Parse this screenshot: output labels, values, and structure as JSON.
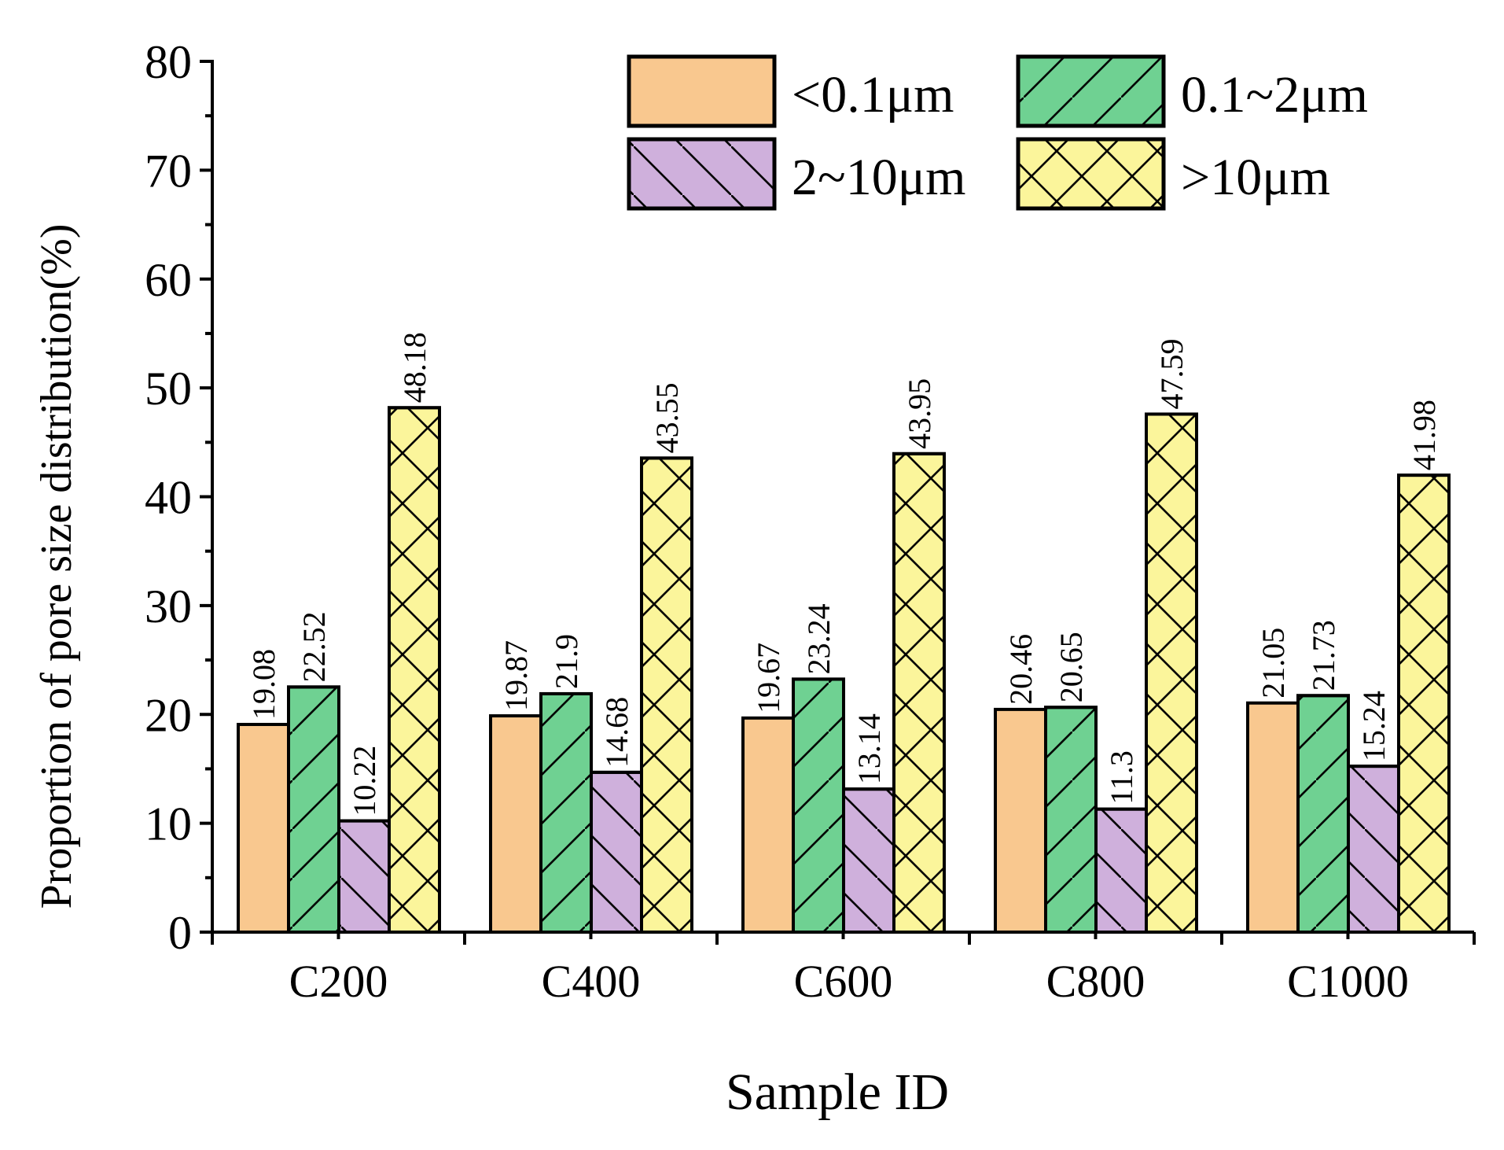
{
  "chart_data": {
    "type": "bar",
    "title": "",
    "xlabel": "Sample ID",
    "ylabel": "Proportion of pore size distribution(%)",
    "categories": [
      "C200",
      "C400",
      "C600",
      "C800",
      "C1000"
    ],
    "ylim": [
      0,
      80
    ],
    "y_ticks": [
      "0",
      "10",
      "20",
      "30",
      "40",
      "50",
      "60",
      "70",
      "80"
    ],
    "legend_position": "top-right",
    "grid": false,
    "series": [
      {
        "name": "<0.1μm",
        "color": "#f9c88f",
        "pattern": "none",
        "values": [
          19.08,
          19.87,
          19.67,
          20.46,
          21.05
        ],
        "labels": [
          "19.08",
          "19.87",
          "19.67",
          "20.46",
          "21.05"
        ]
      },
      {
        "name": "0.1~2μm",
        "color": "#6fd192",
        "pattern": "forward-diagonal",
        "values": [
          22.52,
          21.9,
          23.24,
          20.65,
          21.73
        ],
        "labels": [
          "22.52",
          "21.9",
          "23.24",
          "20.65",
          "21.73"
        ]
      },
      {
        "name": "2~10μm",
        "color": "#cfb0dc",
        "pattern": "back-diagonal",
        "values": [
          10.22,
          14.68,
          13.14,
          11.3,
          15.24
        ],
        "labels": [
          "10.22",
          "14.68",
          "13.14",
          "11.3",
          "15.24"
        ]
      },
      {
        "name": ">10μm",
        "color": "#fbf59b",
        "pattern": "cross-hatch",
        "values": [
          48.18,
          43.55,
          43.95,
          47.59,
          41.98
        ],
        "labels": [
          "48.18",
          "43.55",
          "43.95",
          "47.59",
          "41.98"
        ]
      }
    ]
  }
}
